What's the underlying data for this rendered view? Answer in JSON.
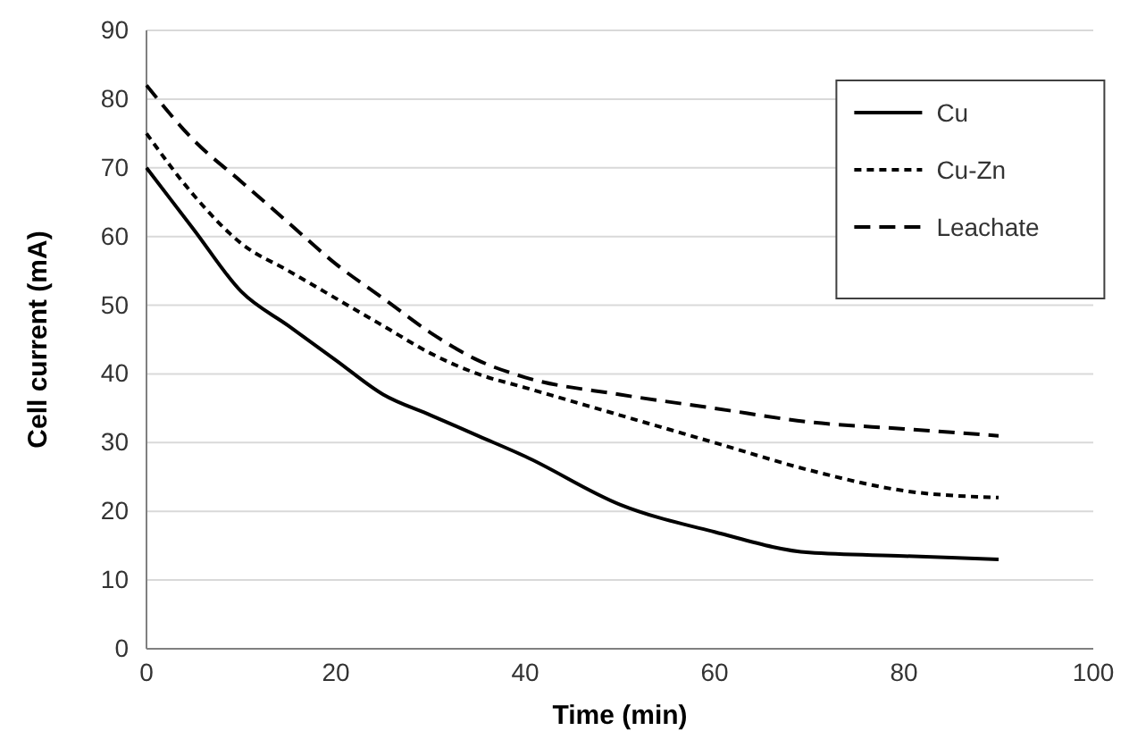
{
  "chart_data": {
    "type": "line",
    "xlabel": "Time (min)",
    "ylabel": "Cell current (mA)",
    "x": [
      0,
      5,
      10,
      15,
      20,
      25,
      30,
      35,
      40,
      50,
      60,
      70,
      80,
      90
    ],
    "series": [
      {
        "name": "Cu",
        "color": "#000000",
        "line_style": "solid",
        "values": [
          70,
          61,
          52,
          47,
          42,
          37,
          34,
          31,
          28,
          21,
          17,
          14,
          13.5,
          13
        ]
      },
      {
        "name": "Cu-Zn",
        "color": "#000000",
        "line_style": "dotted",
        "values": [
          75,
          66,
          59,
          55,
          51,
          47,
          43,
          40,
          38,
          34,
          30,
          26,
          23,
          22
        ]
      },
      {
        "name": "Leachate",
        "color": "#000000",
        "line_style": "dashed",
        "values": [
          82,
          74,
          68,
          62,
          56,
          51,
          46,
          42,
          39.5,
          37,
          35,
          33,
          32,
          31
        ]
      }
    ],
    "xlim": [
      0,
      100
    ],
    "xticks": [
      0,
      20,
      40,
      60,
      80,
      100
    ],
    "ylim": [
      0,
      90
    ],
    "yticks": [
      0,
      10,
      20,
      30,
      40,
      50,
      60,
      70,
      80,
      90
    ],
    "grid": "y",
    "legend": "top right",
    "marker": "none"
  }
}
